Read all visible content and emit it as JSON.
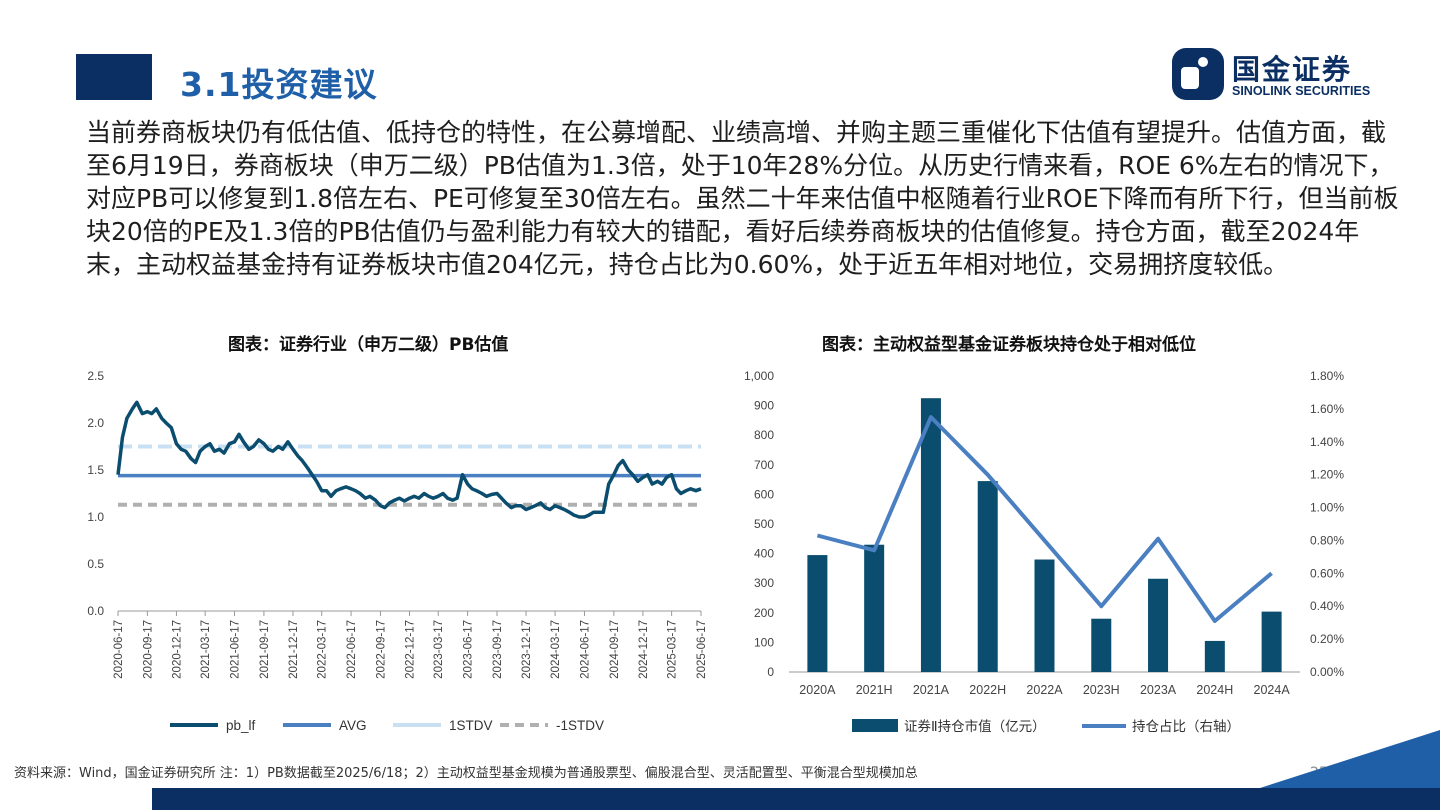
{
  "header": {
    "title": "3.1投资建议",
    "logo_cn": "国金证券",
    "logo_en": "SINOLINK SECURITIES"
  },
  "body_text": "当前券商板块仍有低估值、低持仓的特性，在公募增配、业绩高增、并购主题三重催化下估值有望提升。估值方面，截至6月19日，券商板块（申万二级）PB估值为1.3倍，处于10年28%分位。从历史行情来看，ROE 6%左右的情况下，对应PB可以修复到1.8倍左右、PE可修复至30倍左右。虽然二十年来估值中枢随着行业ROE下降而有所下行，但当前板块20倍的PE及1.3倍的PB估值仍与盈利能力有较大的错配，看好后续券商板块的估值修复。持仓方面，截至2024年末，主动权益基金持有证券板块市值204亿元，持仓占比为0.60%，处于近五年相对地位，交易拥挤度较低。",
  "colors": {
    "navy": "#0b2f63",
    "pb_line": "#0b4d6e",
    "avg_line": "#4a7fc1",
    "std_line": "#c9dff2",
    "minus_std_line": "#b0b0b0",
    "bar": "#0b4d6e",
    "share_line": "#4a7fc1"
  },
  "chart_data": [
    {
      "type": "line",
      "title": "图表：证券行业（申万二级）PB估值",
      "x_ticks": [
        "2020-06-17",
        "2020-09-17",
        "2020-12-17",
        "2021-03-17",
        "2021-06-17",
        "2021-09-17",
        "2021-12-17",
        "2022-03-17",
        "2022-06-17",
        "2022-09-17",
        "2022-12-17",
        "2023-03-17",
        "2023-06-17",
        "2023-09-17",
        "2023-12-17",
        "2024-03-17",
        "2024-06-17",
        "2024-09-17",
        "2024-12-17",
        "2025-03-17",
        "2025-06-17"
      ],
      "y_ticks": [
        "0.0",
        "0.5",
        "1.0",
        "1.5",
        "2.0",
        "2.5"
      ],
      "ylim": [
        0,
        2.5
      ],
      "series": [
        {
          "name": "pb_lf",
          "x": [
            "2020-06-17",
            "2020-07-01",
            "2020-07-15",
            "2020-08-01",
            "2020-08-15",
            "2020-09-01",
            "2020-09-17",
            "2020-10-01",
            "2020-10-15",
            "2020-11-01",
            "2020-11-15",
            "2020-12-01",
            "2020-12-17",
            "2021-01-01",
            "2021-01-15",
            "2021-02-01",
            "2021-02-15",
            "2021-03-01",
            "2021-03-17",
            "2021-04-01",
            "2021-04-15",
            "2021-05-01",
            "2021-05-15",
            "2021-06-01",
            "2021-06-17",
            "2021-07-01",
            "2021-07-15",
            "2021-08-01",
            "2021-08-15",
            "2021-09-01",
            "2021-09-17",
            "2021-10-01",
            "2021-10-15",
            "2021-11-01",
            "2021-11-15",
            "2021-12-01",
            "2021-12-17",
            "2022-01-01",
            "2022-01-15",
            "2022-02-01",
            "2022-02-15",
            "2022-03-01",
            "2022-03-17",
            "2022-04-01",
            "2022-04-15",
            "2022-05-01",
            "2022-05-15",
            "2022-06-01",
            "2022-06-17",
            "2022-07-01",
            "2022-07-15",
            "2022-08-01",
            "2022-08-15",
            "2022-09-01",
            "2022-09-17",
            "2022-10-01",
            "2022-10-15",
            "2022-11-01",
            "2022-11-15",
            "2022-12-01",
            "2022-12-17",
            "2023-01-01",
            "2023-01-15",
            "2023-02-01",
            "2023-02-15",
            "2023-03-01",
            "2023-03-17",
            "2023-04-01",
            "2023-04-15",
            "2023-05-01",
            "2023-05-15",
            "2023-06-01",
            "2023-06-17",
            "2023-07-01",
            "2023-07-15",
            "2023-08-01",
            "2023-08-15",
            "2023-09-01",
            "2023-09-17",
            "2023-10-01",
            "2023-10-15",
            "2023-11-01",
            "2023-11-15",
            "2023-12-01",
            "2023-12-17",
            "2024-01-01",
            "2024-01-15",
            "2024-02-01",
            "2024-02-15",
            "2024-03-01",
            "2024-03-17",
            "2024-04-01",
            "2024-04-15",
            "2024-05-01",
            "2024-05-15",
            "2024-06-01",
            "2024-06-17",
            "2024-07-01",
            "2024-07-15",
            "2024-08-01",
            "2024-08-15",
            "2024-09-01",
            "2024-09-17",
            "2024-10-01",
            "2024-10-15",
            "2024-11-01",
            "2024-11-15",
            "2024-12-01",
            "2024-12-17",
            "2025-01-01",
            "2025-01-15",
            "2025-02-01",
            "2025-02-15",
            "2025-03-01",
            "2025-03-17",
            "2025-04-01",
            "2025-04-15",
            "2025-05-01",
            "2025-05-15",
            "2025-06-01",
            "2025-06-17"
          ],
          "values": [
            1.45,
            1.85,
            2.05,
            2.15,
            2.22,
            2.1,
            2.12,
            2.1,
            2.15,
            2.05,
            2.0,
            1.95,
            1.78,
            1.72,
            1.7,
            1.62,
            1.58,
            1.7,
            1.75,
            1.78,
            1.7,
            1.72,
            1.68,
            1.78,
            1.8,
            1.88,
            1.8,
            1.72,
            1.75,
            1.82,
            1.78,
            1.72,
            1.7,
            1.75,
            1.72,
            1.8,
            1.72,
            1.65,
            1.6,
            1.52,
            1.45,
            1.38,
            1.28,
            1.28,
            1.22,
            1.28,
            1.3,
            1.32,
            1.3,
            1.28,
            1.25,
            1.2,
            1.22,
            1.18,
            1.12,
            1.1,
            1.15,
            1.18,
            1.2,
            1.17,
            1.2,
            1.22,
            1.2,
            1.25,
            1.22,
            1.2,
            1.22,
            1.25,
            1.2,
            1.18,
            1.2,
            1.45,
            1.35,
            1.3,
            1.28,
            1.25,
            1.22,
            1.24,
            1.25,
            1.2,
            1.15,
            1.1,
            1.12,
            1.12,
            1.08,
            1.1,
            1.12,
            1.15,
            1.1,
            1.08,
            1.12,
            1.1,
            1.08,
            1.05,
            1.02,
            1.0,
            1.0,
            1.02,
            1.05,
            1.05,
            1.05,
            1.35,
            1.45,
            1.55,
            1.6,
            1.5,
            1.45,
            1.38,
            1.42,
            1.45,
            1.35,
            1.38,
            1.35,
            1.42,
            1.45,
            1.3,
            1.25,
            1.28,
            1.3,
            1.28,
            1.3
          ]
        },
        {
          "name": "AVG",
          "value": 1.44
        },
        {
          "name": "1STDV",
          "value": 1.75
        },
        {
          "name": "-1STDV",
          "value": 1.13
        }
      ],
      "legend": [
        "pb_lf",
        "AVG",
        "1STDV",
        "-1STDV"
      ],
      "legend_position": "bottom"
    },
    {
      "type": "bar",
      "title": "图表：主动权益型基金证券板块持仓处于相对低位",
      "categories": [
        "2020A",
        "2021H",
        "2021A",
        "2022H",
        "2022A",
        "2023H",
        "2023A",
        "2024H",
        "2024A"
      ],
      "series": [
        {
          "name": "证券Ⅱ持仓市值（亿元）",
          "type": "bar",
          "axis": "left",
          "values": [
            395,
            430,
            925,
            645,
            380,
            180,
            315,
            105,
            204
          ]
        },
        {
          "name": "持仓占比（右轴）",
          "type": "line",
          "axis": "right",
          "values": [
            0.83,
            0.74,
            1.55,
            1.2,
            0.8,
            0.4,
            0.81,
            0.31,
            0.6
          ]
        }
      ],
      "ylim_left": [
        0,
        1000
      ],
      "ylim_right": [
        0,
        1.8
      ],
      "left_ticks": [
        "0",
        "100",
        "200",
        "300",
        "400",
        "500",
        "600",
        "700",
        "800",
        "900",
        "1,000"
      ],
      "right_ticks": [
        "0.00%",
        "0.20%",
        "0.40%",
        "0.60%",
        "0.80%",
        "1.00%",
        "1.20%",
        "1.40%",
        "1.60%",
        "1.80%"
      ],
      "legend_position": "bottom"
    }
  ],
  "footer": {
    "source": "资料来源：Wind，国金证券研究所 注：1）PB数据截至2025/6/18；2）主动权益型基金规模为普通股票型、偏股混合型、灵活配置型、平衡混合型规模加总",
    "page": "25"
  }
}
